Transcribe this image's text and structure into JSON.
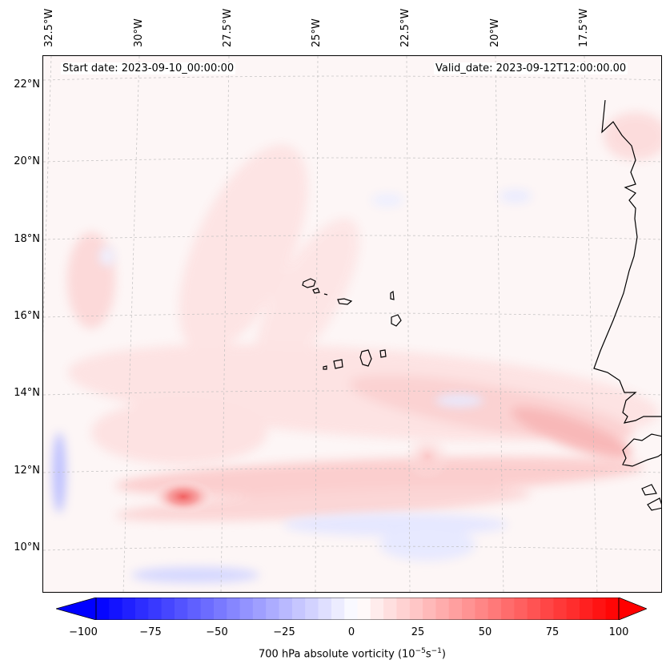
{
  "header": {
    "start_date": "Start date: 2023-09-10_00:00:00",
    "valid_date": "Valid_date: 2023-09-12T12:00:00.00"
  },
  "longitude_labels": [
    "32.5°W",
    "30°W",
    "27.5°W",
    "25°W",
    "22.5°W",
    "20°W",
    "17.5°W"
  ],
  "latitude_labels": [
    "22°N",
    "20°N",
    "18°N",
    "16°N",
    "14°N",
    "12°N",
    "10°N"
  ],
  "colorbar": {
    "ticks": [
      "−100",
      "−75",
      "−50",
      "−25",
      "0",
      "25",
      "50",
      "75",
      "100"
    ],
    "label_text": "700 hPa absolute vorticity (10",
    "label_exp1": "−5",
    "label_mid": "s",
    "label_exp2": "−1",
    "label_end": ")",
    "range": [
      -100,
      100
    ],
    "cmap": "bwr",
    "low_color": "#0000ff",
    "high_color": "#ff0000"
  },
  "map": {
    "ocean_fill": "#fdf6f6",
    "coastline_color": "#000000",
    "gridline_color": "#bbbbbb"
  }
}
